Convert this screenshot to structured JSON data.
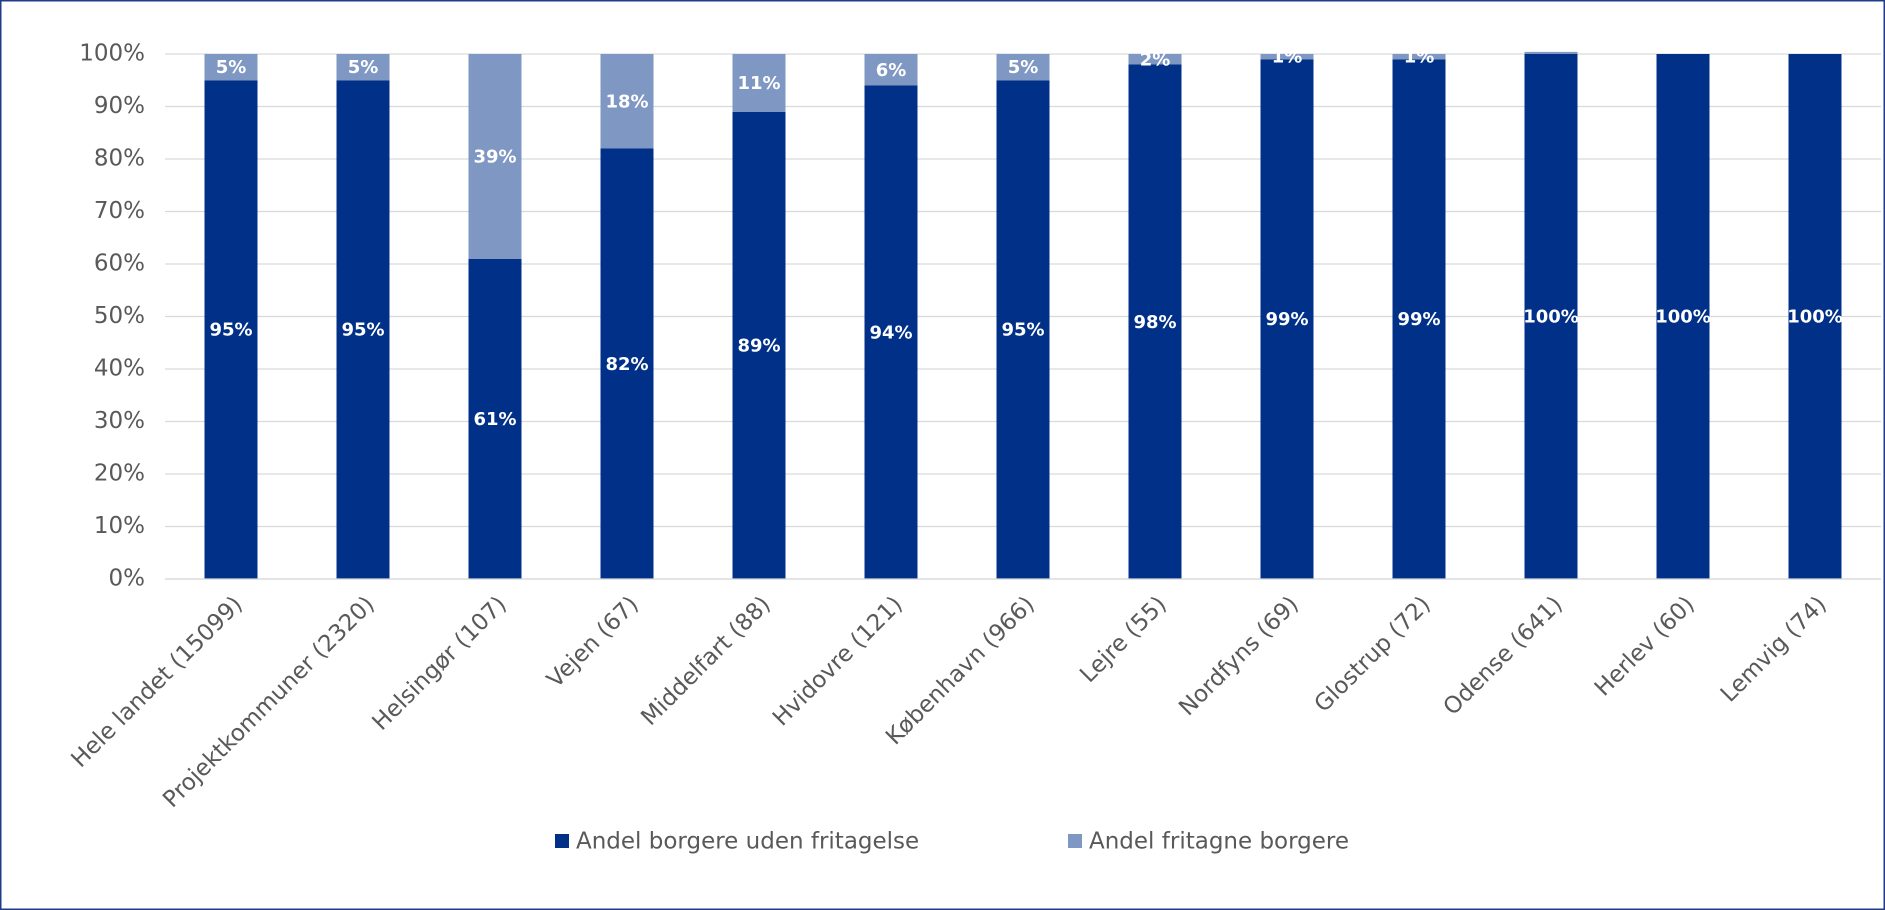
{
  "chart_data": {
    "type": "stacked_bar",
    "categories": [
      "Hele landet (15099)",
      "Projektkommuner (2320)",
      "Helsingør (107)",
      "Vejen (67)",
      "Middelfart (88)",
      "Hvidovre (121)",
      "København (966)",
      "Lejre (55)",
      "Nordfyns (69)",
      "Glostrup (72)",
      "Odense (641)",
      "Herlev (60)",
      "Lemvig (74)"
    ],
    "series": [
      {
        "name": "Andel borgere uden fritagelse",
        "color": "#003087",
        "values": [
          95,
          95,
          61,
          82,
          89,
          94,
          95,
          98,
          99,
          99,
          100,
          100,
          100
        ],
        "value_labels": [
          "95%",
          "95%",
          "61%",
          "82%",
          "89%",
          "94%",
          "95%",
          "98%",
          "99%",
          "99%",
          "100%",
          "100%",
          "100%"
        ]
      },
      {
        "name": "Andel fritagne borgere",
        "color": "#7f97c3",
        "values": [
          5,
          5,
          39,
          18,
          11,
          6,
          5,
          2,
          1,
          1,
          0.4,
          0,
          0
        ],
        "value_labels": [
          "5%",
          "5%",
          "39%",
          "18%",
          "11%",
          "6%",
          "5%",
          "2%",
          "1%",
          "1%",
          null,
          null,
          null
        ]
      }
    ],
    "ylim": [
      0,
      100
    ],
    "yticks": [
      {
        "value": 0,
        "label": "0%"
      },
      {
        "value": 10,
        "label": "10%"
      },
      {
        "value": 20,
        "label": "20%"
      },
      {
        "value": 30,
        "label": "30%"
      },
      {
        "value": 40,
        "label": "40%"
      },
      {
        "value": 50,
        "label": "50%"
      },
      {
        "value": 60,
        "label": "60%"
      },
      {
        "value": 70,
        "label": "70%"
      },
      {
        "value": 80,
        "label": "80%"
      },
      {
        "value": 90,
        "label": "90%"
      },
      {
        "value": 100,
        "label": "100%"
      }
    ],
    "grid": true,
    "legend": "bottom"
  }
}
